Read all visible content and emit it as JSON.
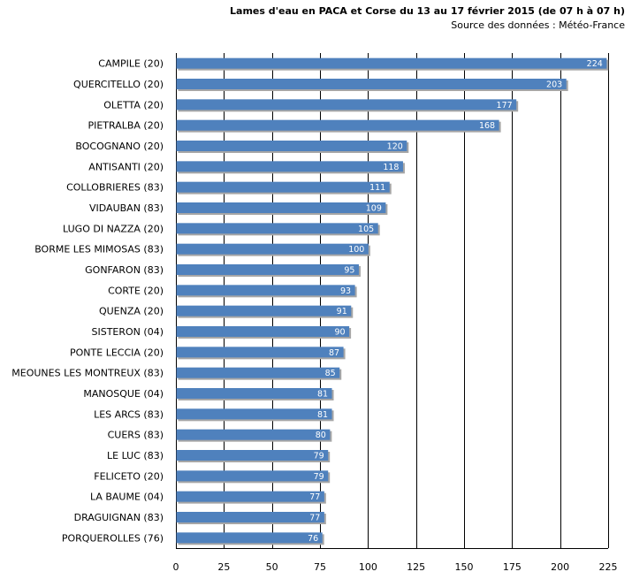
{
  "chart_data": {
    "type": "bar",
    "orientation": "horizontal",
    "title": "Lames d'eau  en PACA et Corse du 13 au 17 février 2015 (de 07 h à 07 h)",
    "subtitle": "Source des données : Météo-France",
    "categories": [
      "CAMPILE (20)",
      "QUERCITELLO (20)",
      "OLETTA (20)",
      "PIETRALBA (20)",
      "BOCOGNANO (20)",
      "ANTISANTI (20)",
      "COLLOBRIERES (83)",
      "VIDAUBAN (83)",
      "LUGO DI NAZZA (20)",
      "BORME LES MIMOSAS (83)",
      "GONFARON (83)",
      "CORTE (20)",
      "QUENZA (20)",
      "SISTERON (04)",
      "PONTE LECCIA (20)",
      "MEOUNES  LES MONTREUX (83)",
      "MANOSQUE (04)",
      "LES ARCS (83)",
      "CUERS (83)",
      "LE LUC (83)",
      "FELICETO (20)",
      "LA BAUME (04)",
      "DRAGUIGNAN (83)",
      "PORQUEROLLES (76)"
    ],
    "values": [
      224,
      203,
      177,
      168,
      120,
      118,
      111,
      109,
      105,
      100,
      95,
      93,
      91,
      90,
      87,
      85,
      81,
      81,
      80,
      79,
      79,
      77,
      77,
      76
    ],
    "xticks": [
      "0",
      "25",
      "50",
      "75",
      "100",
      "125",
      "150",
      "175",
      "200",
      "225"
    ],
    "xlim": [
      0,
      225
    ],
    "grid": true,
    "legend": "none",
    "bar_color": "#4F81BD",
    "bar_shadow_color": "#A6A6A6",
    "grid_color": "#000000"
  }
}
